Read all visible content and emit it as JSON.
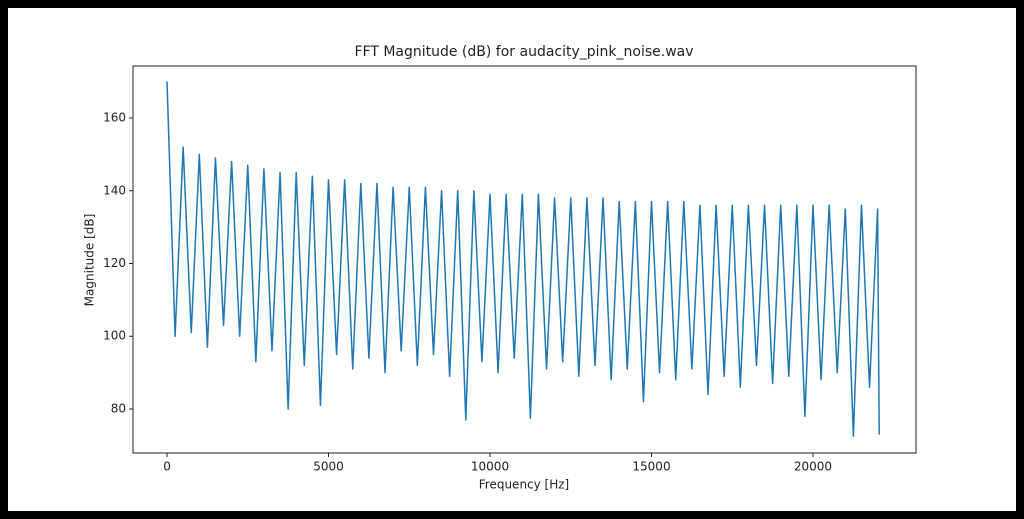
{
  "chart_data": {
    "type": "line",
    "title": "FFT Magnitude (dB) for audacity_pink_noise.wav",
    "x_label": "Frequency [Hz]",
    "y_label": "Magnitude [dB]",
    "color": "#1f77b4",
    "x": [
      0,
      250,
      500,
      750,
      1000,
      1250,
      1500,
      1750,
      2000,
      2250,
      2500,
      2750,
      3000,
      3250,
      3500,
      3750,
      4000,
      4250,
      4500,
      4750,
      5000,
      5250,
      5500,
      5750,
      6000,
      6250,
      6500,
      6750,
      7000,
      7250,
      7500,
      7750,
      8000,
      8250,
      8500,
      8750,
      9000,
      9250,
      9500,
      9750,
      10000,
      10250,
      10500,
      10750,
      11000,
      11250,
      11500,
      11750,
      12000,
      12250,
      12500,
      12750,
      13000,
      13250,
      13500,
      13750,
      14000,
      14250,
      14500,
      14750,
      15000,
      15250,
      15500,
      15750,
      16000,
      16250,
      16500,
      16750,
      17000,
      17250,
      17500,
      17750,
      18000,
      18250,
      18500,
      18750,
      19000,
      19250,
      19500,
      19750,
      20000,
      20250,
      20500,
      20750,
      21000,
      21250,
      21500,
      21750,
      22000,
      22050
    ],
    "values": [
      170,
      100,
      152,
      101,
      150,
      97,
      149,
      103,
      148,
      100,
      147,
      93,
      146,
      96,
      145,
      80,
      145,
      92,
      144,
      81,
      143,
      95,
      143,
      91,
      142,
      94,
      142,
      90,
      141,
      96,
      141,
      92,
      141,
      95,
      140,
      89,
      140,
      77,
      140,
      93,
      139,
      90,
      139,
      94,
      139,
      77.5,
      139,
      91,
      138,
      93,
      138,
      89,
      138,
      92,
      138,
      88,
      137,
      91,
      137,
      82,
      137,
      90,
      137,
      88,
      137,
      91,
      136,
      84,
      136,
      89,
      136,
      86,
      136,
      92,
      136,
      87,
      136,
      89,
      136,
      78,
      136,
      88,
      136,
      90,
      135,
      72.5,
      136,
      86,
      135,
      73
    ],
    "xlim": [
      -1053,
      23189
    ],
    "ylim": [
      67.9,
      174.3
    ],
    "xticks": [
      0,
      5000,
      10000,
      15000,
      20000
    ],
    "yticks": [
      80,
      100,
      120,
      140,
      160
    ],
    "grid": false
  }
}
